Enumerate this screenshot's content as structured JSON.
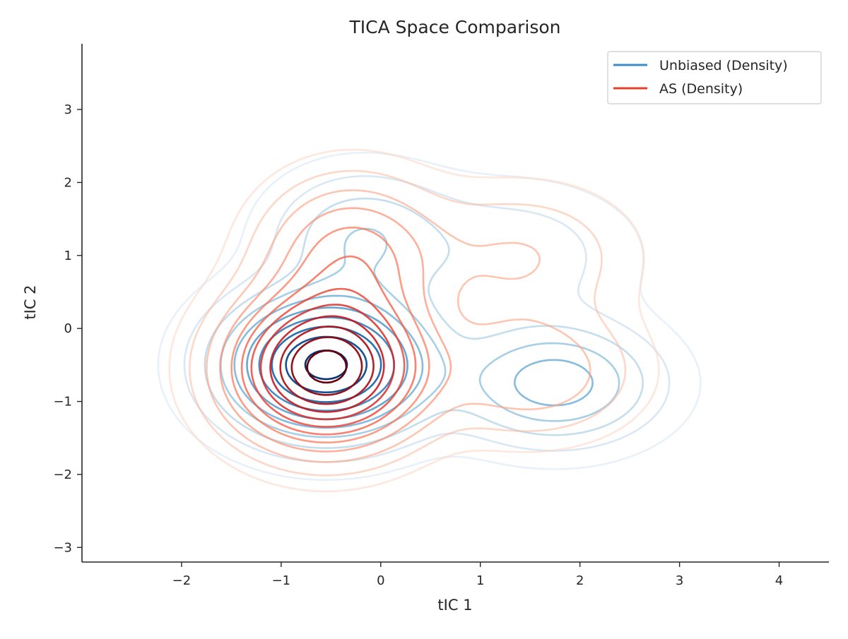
{
  "chart_data": {
    "type": "contour",
    "title": "TICA Space Comparison",
    "xlabel": "tIC 1",
    "ylabel": "tIC 2",
    "xlim": [
      -3,
      4.5
    ],
    "ylim": [
      -3.2,
      3.9
    ],
    "xticks": [
      -2,
      -1,
      0,
      1,
      2,
      3,
      4
    ],
    "yticks": [
      -3,
      -2,
      -1,
      0,
      1,
      2,
      3
    ],
    "xtick_labels": [
      "−2",
      "−1",
      "0",
      "1",
      "2",
      "3",
      "4"
    ],
    "ytick_labels": [
      "−3",
      "−2",
      "−1",
      "0",
      "1",
      "2",
      "3"
    ],
    "grid": false,
    "legend_position": "top-right",
    "colors": {
      "unbiased": "#3a8dc8",
      "as": "#e8402a"
    },
    "series": [
      {
        "name": "Unbiased (Density)",
        "colormap": "Blues",
        "levels": 10,
        "components": [
          {
            "weight": 1.0,
            "mean": [
              -0.55,
              -0.5
            ],
            "sd": [
              0.62,
              0.58
            ]
          },
          {
            "weight": 0.4,
            "mean": [
              1.75,
              -0.75
            ],
            "sd": [
              0.62,
              0.5
            ]
          },
          {
            "weight": 0.22,
            "mean": [
              -0.2,
              1.25
            ],
            "sd": [
              0.55,
              0.55
            ]
          },
          {
            "weight": 0.12,
            "mean": [
              1.3,
              1.0
            ],
            "sd": [
              0.75,
              0.6
            ]
          }
        ]
      },
      {
        "name": "AS (Density)",
        "colormap": "Reds",
        "levels": 12,
        "components": [
          {
            "weight": 1.0,
            "mean": [
              -0.55,
              -0.55
            ],
            "sd": [
              0.58,
              0.62
            ]
          },
          {
            "weight": 0.3,
            "mean": [
              -0.3,
              1.0
            ],
            "sd": [
              0.55,
              0.65
            ]
          },
          {
            "weight": 0.18,
            "mean": [
              1.5,
              -0.6
            ],
            "sd": [
              0.65,
              0.55
            ]
          },
          {
            "weight": 0.12,
            "mean": [
              1.4,
              1.0
            ],
            "sd": [
              0.7,
              0.6
            ]
          }
        ]
      }
    ]
  }
}
